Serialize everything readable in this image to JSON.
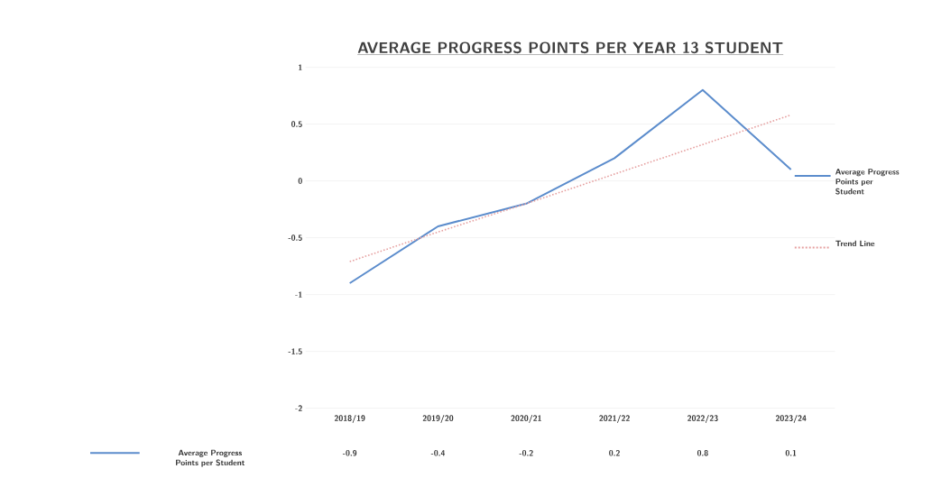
{
  "chart_data": {
    "type": "line",
    "title": "AVERAGE PROGRESS POINTS PER YEAR 13 STUDENT",
    "categories": [
      "2018/19",
      "2019/20",
      "2020/21",
      "2021/22",
      "2022/23",
      "2023/24"
    ],
    "series": [
      {
        "name": "Average Progress Points per Student",
        "color": "#5b8ccc",
        "values": [
          -0.9,
          -0.4,
          -0.2,
          0.2,
          0.8,
          0.1
        ],
        "value_labels": [
          "-0.9",
          "-0.4",
          "-0.2",
          "0.2",
          "0.8",
          "0.1"
        ]
      },
      {
        "name": "Trend Line",
        "color": "#e6a0a0",
        "line_style": "dotted",
        "values": [
          -0.71,
          -0.45,
          -0.2,
          0.06,
          0.32,
          0.58
        ]
      }
    ],
    "ylim": [
      -2,
      1
    ],
    "yticks": [
      -2,
      -1.5,
      -1,
      -0.5,
      0,
      0.5,
      1
    ],
    "grid": "y",
    "legend": "right"
  }
}
